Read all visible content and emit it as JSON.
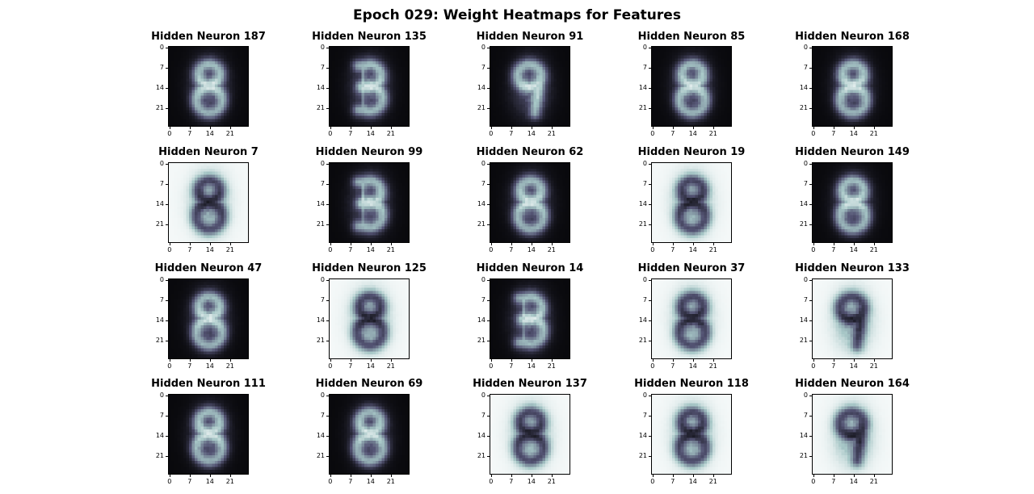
{
  "title": "Epoch 029: Weight Heatmaps for Features",
  "chart_data": {
    "type": "heatmap",
    "colormap": "bone",
    "grid": false,
    "image_size": [
      28,
      28
    ],
    "tick_labels": [
      "0",
      "7",
      "14",
      "21"
    ],
    "xlim": [
      0,
      28
    ],
    "ylim": [
      28,
      0
    ],
    "panels": [
      {
        "title": "Hidden Neuron 187",
        "polarity": "bright-digit",
        "digit": "8"
      },
      {
        "title": "Hidden Neuron 135",
        "polarity": "bright-digit",
        "digit": "3"
      },
      {
        "title": "Hidden Neuron 91",
        "polarity": "bright-digit",
        "digit": "9"
      },
      {
        "title": "Hidden Neuron 85",
        "polarity": "bright-digit",
        "digit": "8"
      },
      {
        "title": "Hidden Neuron 168",
        "polarity": "bright-digit",
        "digit": "8"
      },
      {
        "title": "Hidden Neuron 7",
        "polarity": "dark-digit",
        "digit": "8"
      },
      {
        "title": "Hidden Neuron 99",
        "polarity": "bright-digit",
        "digit": "3"
      },
      {
        "title": "Hidden Neuron 62",
        "polarity": "bright-digit",
        "digit": "8"
      },
      {
        "title": "Hidden Neuron 19",
        "polarity": "dark-digit",
        "digit": "8"
      },
      {
        "title": "Hidden Neuron 149",
        "polarity": "bright-digit",
        "digit": "8"
      },
      {
        "title": "Hidden Neuron 47",
        "polarity": "bright-digit",
        "digit": "8"
      },
      {
        "title": "Hidden Neuron 125",
        "polarity": "dark-digit",
        "digit": "8"
      },
      {
        "title": "Hidden Neuron 14",
        "polarity": "bright-digit",
        "digit": "3"
      },
      {
        "title": "Hidden Neuron 37",
        "polarity": "dark-digit",
        "digit": "8"
      },
      {
        "title": "Hidden Neuron 133",
        "polarity": "dark-digit",
        "digit": "9"
      },
      {
        "title": "Hidden Neuron 111",
        "polarity": "bright-digit",
        "digit": "8"
      },
      {
        "title": "Hidden Neuron 69",
        "polarity": "bright-digit",
        "digit": "8"
      },
      {
        "title": "Hidden Neuron 137",
        "polarity": "dark-digit",
        "digit": "8"
      },
      {
        "title": "Hidden Neuron 118",
        "polarity": "dark-digit",
        "digit": "8"
      },
      {
        "title": "Hidden Neuron 164",
        "polarity": "dark-digit",
        "digit": "9"
      }
    ]
  }
}
